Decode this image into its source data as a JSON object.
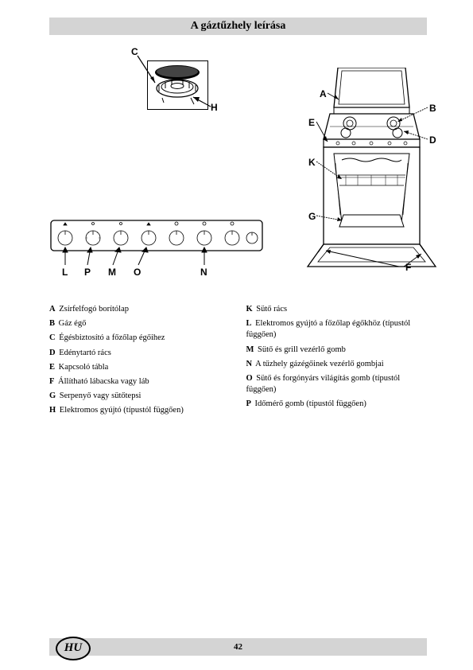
{
  "title": "A gáztűzhely leírása",
  "page_number": "42",
  "lang_code": "HU",
  "burner_labels": {
    "C": "C",
    "H": "H"
  },
  "stove_labels": {
    "A": "A",
    "B": "B",
    "D": "D",
    "E": "E",
    "K": "K",
    "G": "G",
    "F": "F"
  },
  "panel_labels": {
    "L": "L",
    "P": "P",
    "M": "M",
    "O": "O",
    "N": "N"
  },
  "legend_left": [
    {
      "k": "A",
      "t": "Zsírfelfogó borítólap"
    },
    {
      "k": "B",
      "t": "Gáz égő"
    },
    {
      "k": "C",
      "t": "Égésbiztosító a főzőlap égőihez"
    },
    {
      "k": "D",
      "t": "Edénytartó rács"
    },
    {
      "k": "E",
      "t": "Kapcsoló tábla"
    },
    {
      "k": "F",
      "t": "Állítható lábacska vagy láb"
    },
    {
      "k": "G",
      "t": "Serpenyő vagy sütőtepsi"
    },
    {
      "k": "H",
      "t": "Elektromos gyújtó (típustól függően)"
    }
  ],
  "legend_right": [
    {
      "k": "K",
      "t": "Sütő rács"
    },
    {
      "k": "L",
      "t": "Elektromos gyújtó a főzőlap égőkhöz (típustól függően)"
    },
    {
      "k": "M",
      "t": "Sütő és grill vezérlő gomb"
    },
    {
      "k": "N",
      "t": "A tűzhely gázégőinek vezérlő gombjai"
    },
    {
      "k": "O",
      "t": "Sütő és forgónyárs világítás gomb (típustól függően)"
    },
    {
      "k": "P",
      "t": "Időmérő gomb (típustól függően)"
    }
  ],
  "colors": {
    "bar_bg": "#d4d4d4",
    "line": "#000000",
    "page_bg": "#ffffff"
  }
}
